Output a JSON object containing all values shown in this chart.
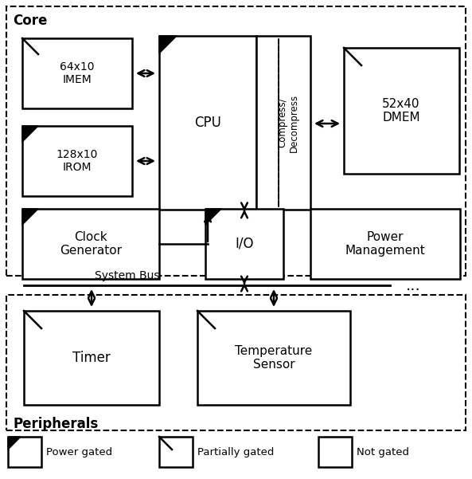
{
  "fig_w": 5.93,
  "fig_h": 6.01,
  "dpi": 100,
  "core_label": "Core",
  "peripherals_label": "Peripherals",
  "system_bus_label": "System Bus"
}
